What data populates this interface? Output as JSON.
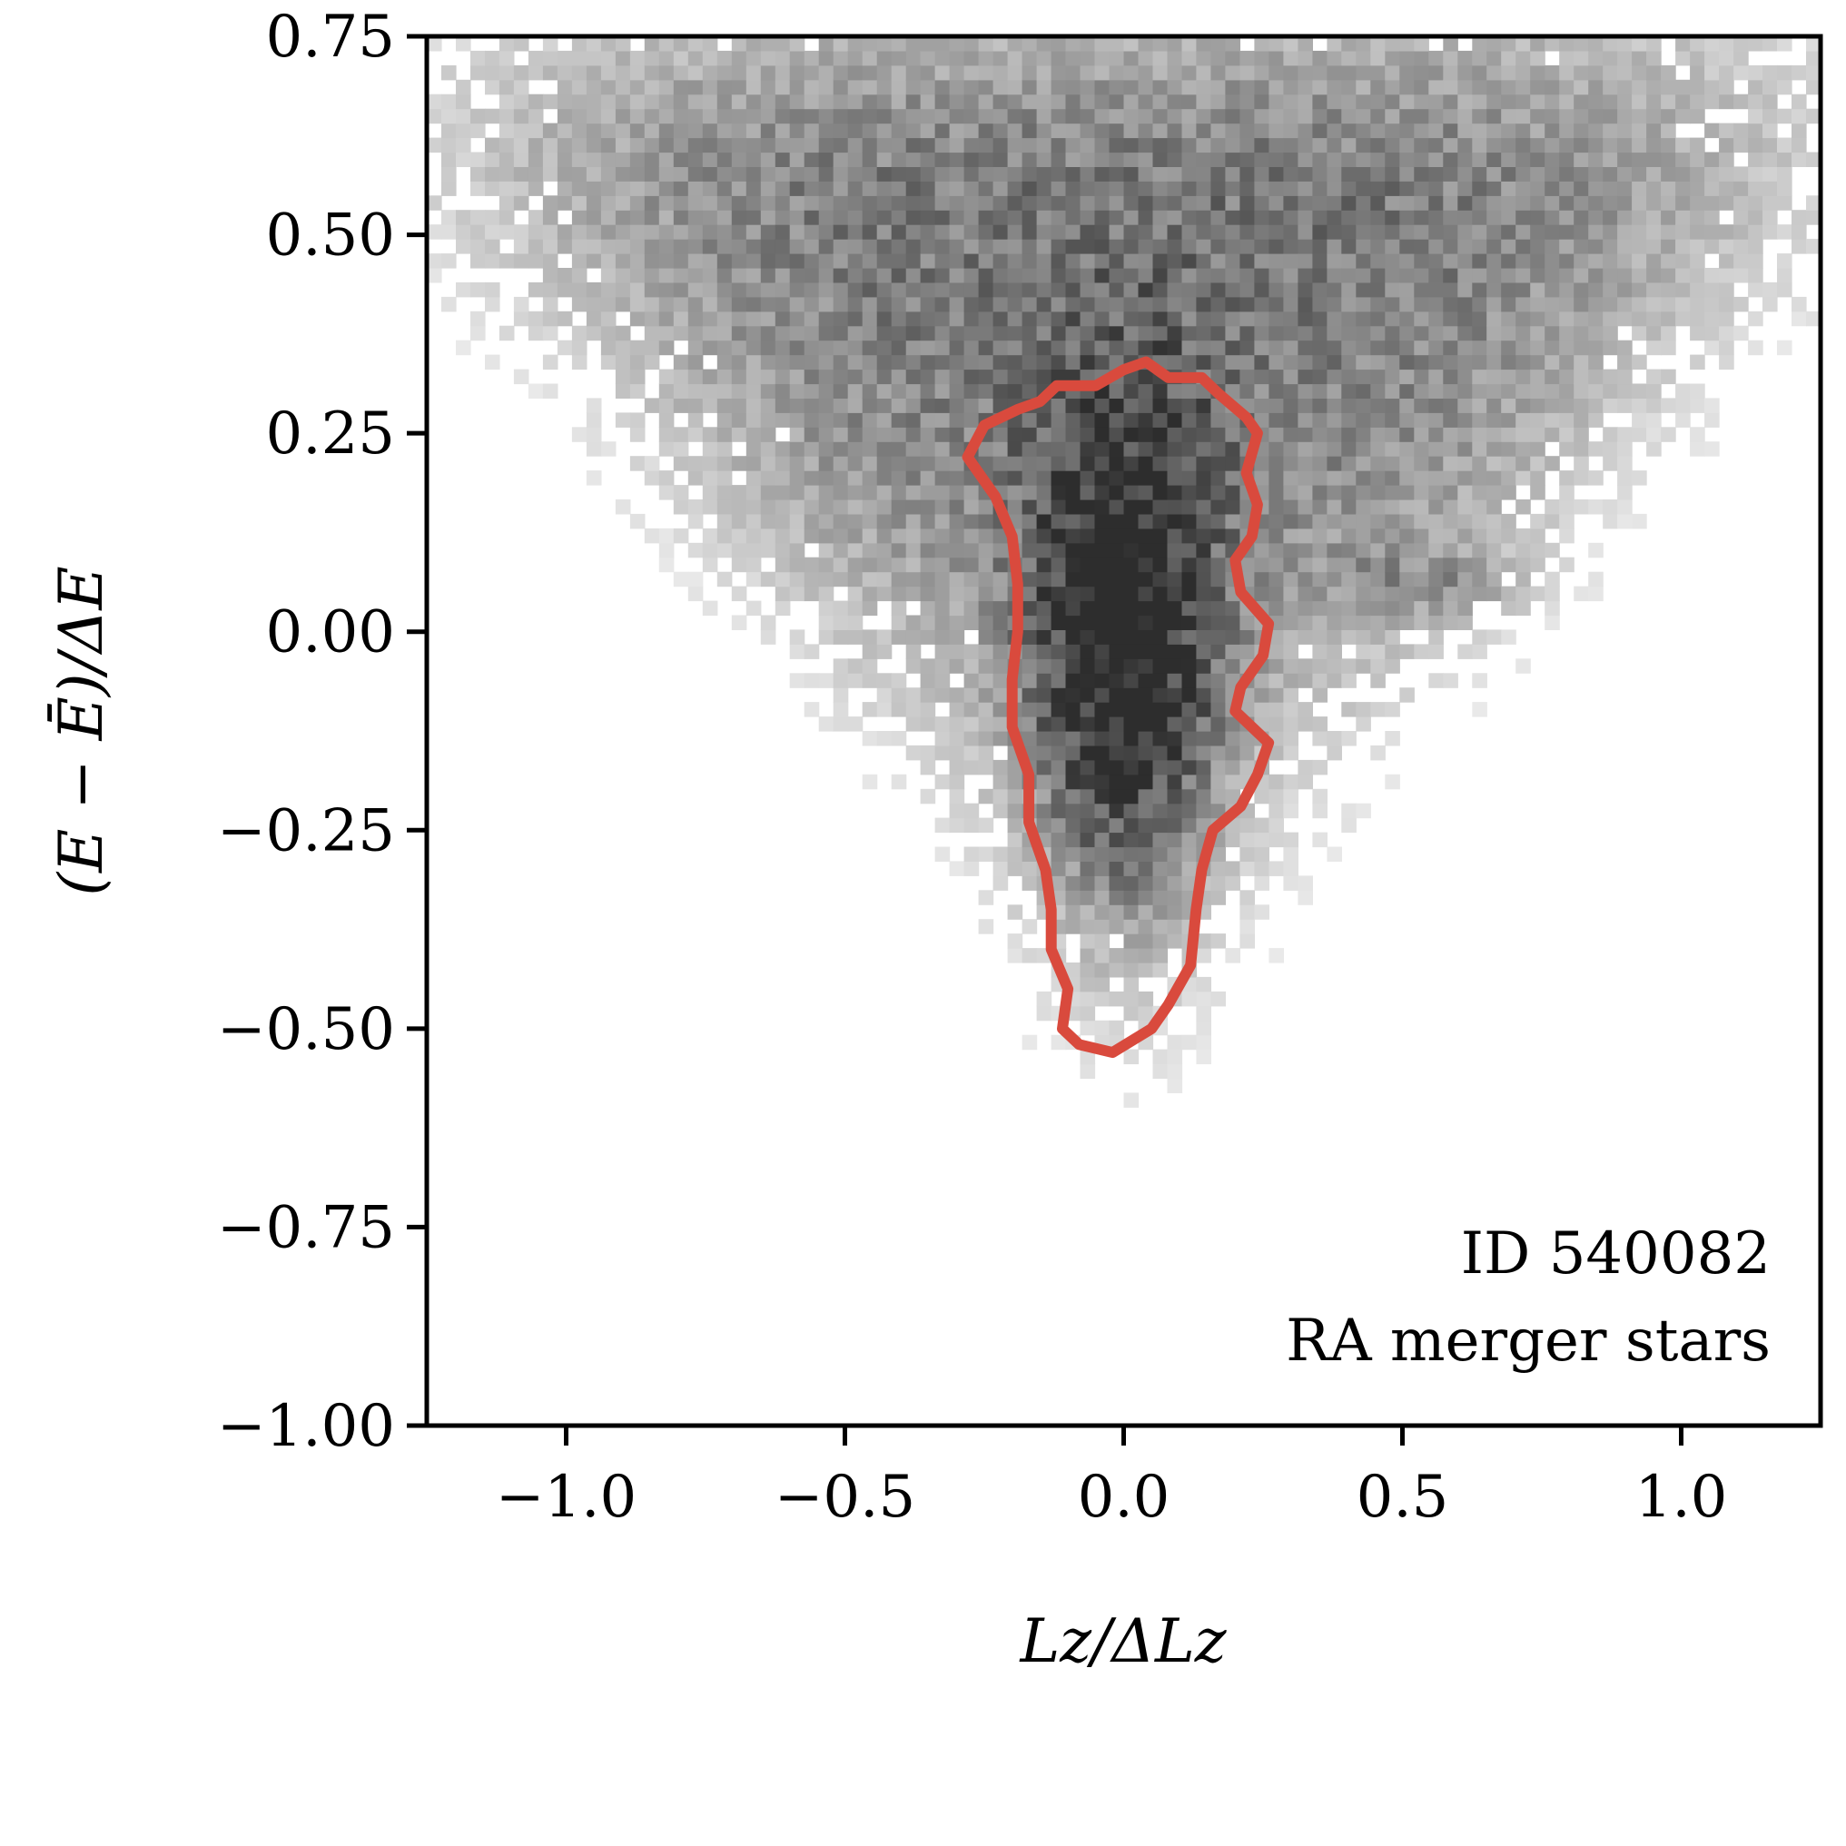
{
  "chart_data": {
    "type": "heatmap",
    "xlim": [
      -1.25,
      1.25
    ],
    "ylim": [
      -1.0,
      0.75
    ],
    "x_ticks": [
      -1.0,
      -0.5,
      0.0,
      0.5,
      1.0
    ],
    "x_tick_labels": [
      "−1.0",
      "−0.5",
      "0.0",
      "0.5",
      "1.0"
    ],
    "y_ticks": [
      0.75,
      0.5,
      0.25,
      0.0,
      -0.25,
      -0.5,
      -0.75,
      -1.0
    ],
    "y_tick_labels": [
      "0.75",
      "0.50",
      "0.25",
      "0.00",
      "−0.25",
      "−0.50",
      "−0.75",
      "−1.00"
    ],
    "xlabel": "Lz/ΔLz",
    "ylabel": "(E − Ē)/ΔE",
    "annotations": [
      "ID 540082",
      "RA merger stars"
    ],
    "annotation_placement": "bottom-right",
    "colormap": "greys",
    "grid": false,
    "density_core": {
      "x_center": 0.0,
      "y_center": -0.05
    },
    "contour": {
      "color": "#d94a3d",
      "points": [
        [
          -0.12,
          0.31
        ],
        [
          -0.05,
          0.31
        ],
        [
          0.0,
          0.33
        ],
        [
          0.04,
          0.34
        ],
        [
          0.08,
          0.32
        ],
        [
          0.14,
          0.32
        ],
        [
          0.17,
          0.3
        ],
        [
          0.22,
          0.27
        ],
        [
          0.24,
          0.25
        ],
        [
          0.22,
          0.2
        ],
        [
          0.24,
          0.16
        ],
        [
          0.23,
          0.12
        ],
        [
          0.2,
          0.09
        ],
        [
          0.21,
          0.05
        ],
        [
          0.26,
          0.01
        ],
        [
          0.25,
          -0.03
        ],
        [
          0.21,
          -0.07
        ],
        [
          0.2,
          -0.1
        ],
        [
          0.26,
          -0.14
        ],
        [
          0.24,
          -0.18
        ],
        [
          0.21,
          -0.22
        ],
        [
          0.16,
          -0.25
        ],
        [
          0.14,
          -0.3
        ],
        [
          0.13,
          -0.35
        ],
        [
          0.12,
          -0.42
        ],
        [
          0.08,
          -0.47
        ],
        [
          0.05,
          -0.5
        ],
        [
          -0.02,
          -0.53
        ],
        [
          -0.08,
          -0.52
        ],
        [
          -0.11,
          -0.5
        ],
        [
          -0.1,
          -0.45
        ],
        [
          -0.13,
          -0.4
        ],
        [
          -0.13,
          -0.35
        ],
        [
          -0.14,
          -0.3
        ],
        [
          -0.17,
          -0.24
        ],
        [
          -0.17,
          -0.18
        ],
        [
          -0.2,
          -0.12
        ],
        [
          -0.2,
          -0.06
        ],
        [
          -0.19,
          0.0
        ],
        [
          -0.19,
          0.06
        ],
        [
          -0.2,
          0.12
        ],
        [
          -0.23,
          0.17
        ],
        [
          -0.28,
          0.22
        ],
        [
          -0.25,
          0.26
        ],
        [
          -0.19,
          0.28
        ],
        [
          -0.15,
          0.29
        ]
      ]
    }
  }
}
